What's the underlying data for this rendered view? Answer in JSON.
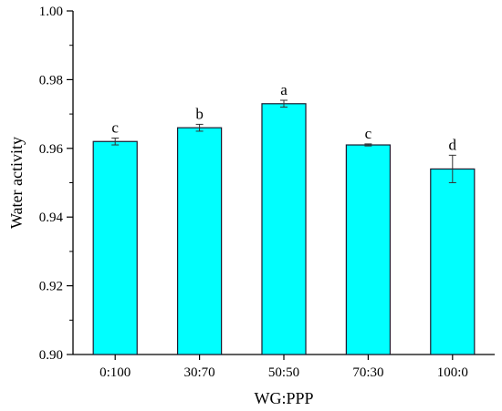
{
  "chart_data": {
    "type": "bar",
    "xlabel": "WG:PPP",
    "ylabel": "Water activity",
    "categories": [
      "0:100",
      "30:70",
      "50:50",
      "70:30",
      "100:0"
    ],
    "values": [
      0.962,
      0.966,
      0.973,
      0.961,
      0.954
    ],
    "errors": [
      0.001,
      0.001,
      0.001,
      0.0003,
      0.004
    ],
    "significance_letters": [
      "c",
      "b",
      "a",
      "c",
      "d"
    ],
    "ylim": [
      0.9,
      1.0
    ],
    "yticks": [
      0.9,
      0.92,
      0.94,
      0.96,
      0.98,
      1.0
    ],
    "ytick_labels": [
      "0.90",
      "0.92",
      "0.94",
      "0.96",
      "0.98",
      "1.00"
    ],
    "grid": false,
    "bar_color": "#00ffff",
    "bar_edge_color": "#1a1a2e"
  }
}
